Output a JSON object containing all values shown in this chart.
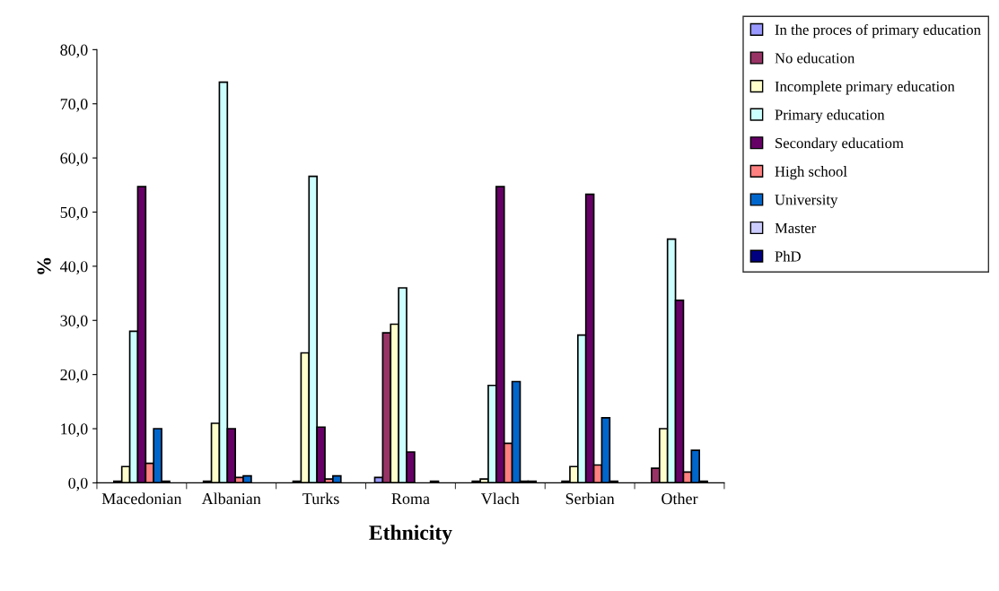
{
  "chart_data": {
    "type": "bar",
    "xlabel": "Ethnicity",
    "ylabel": "%",
    "categories": [
      "Macedonian",
      "Albanian",
      "Turks",
      "Roma",
      "Vlach",
      "Serbian",
      "Other"
    ],
    "series": [
      {
        "name": "In the proces of primary education",
        "color": "#9999ff",
        "values": [
          null,
          null,
          null,
          1.0,
          null,
          null,
          null
        ]
      },
      {
        "name": "No education",
        "color": "#993366",
        "values": [
          0.3,
          0.3,
          0.3,
          27.7,
          0.3,
          0.3,
          2.7
        ]
      },
      {
        "name": "Incomplete primary education",
        "color": "#ffffcc",
        "values": [
          3.0,
          11.0,
          24.0,
          29.3,
          0.7,
          3.0,
          10.0
        ]
      },
      {
        "name": "Primary education",
        "color": "#ccffff",
        "values": [
          28.0,
          74.0,
          56.6,
          36.0,
          18.0,
          27.3,
          45.0
        ]
      },
      {
        "name": "Secondary educatiom",
        "color": "#660066",
        "values": [
          54.7,
          10.0,
          10.3,
          5.7,
          54.7,
          53.3,
          33.7
        ]
      },
      {
        "name": "High school",
        "color": "#ff8080",
        "values": [
          3.6,
          1.0,
          0.7,
          null,
          7.3,
          3.3,
          2.0
        ]
      },
      {
        "name": "University",
        "color": "#0066cc",
        "values": [
          10.0,
          1.3,
          1.3,
          null,
          18.7,
          12.0,
          6.0
        ]
      },
      {
        "name": "Master",
        "color": "#ccccff",
        "values": [
          0.3,
          null,
          null,
          0.3,
          0.3,
          0.3,
          0.3
        ]
      },
      {
        "name": "PhD",
        "color": "#000080",
        "values": [
          null,
          null,
          null,
          null,
          0.3,
          null,
          null
        ]
      }
    ],
    "ylim": [
      0,
      80
    ],
    "yticks": [
      {
        "value": 0,
        "label": "0,0"
      },
      {
        "value": 10,
        "label": "10,0"
      },
      {
        "value": 20,
        "label": "20,0"
      },
      {
        "value": 30,
        "label": "30,0"
      },
      {
        "value": 40,
        "label": "40,0"
      },
      {
        "value": 50,
        "label": "50,0"
      },
      {
        "value": 60,
        "label": "60,0"
      },
      {
        "value": 70,
        "label": "70,0"
      },
      {
        "value": 80,
        "label": "80,0"
      }
    ],
    "grid": false,
    "legend": "top right"
  }
}
